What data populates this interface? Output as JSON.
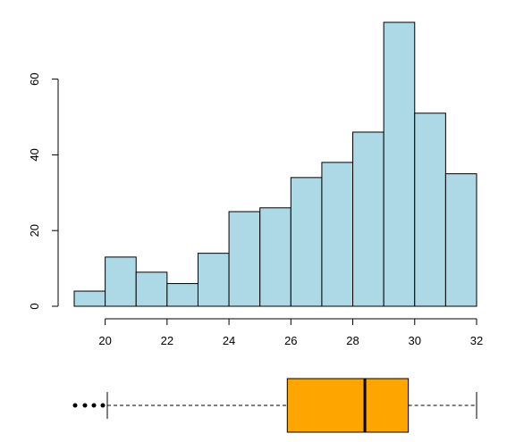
{
  "chart_data": [
    {
      "type": "bar",
      "subtype": "histogram",
      "bin_edges": [
        19,
        20,
        21,
        22,
        23,
        24,
        25,
        26,
        27,
        28,
        29,
        30,
        31,
        32
      ],
      "values": [
        4,
        13,
        9,
        6,
        14,
        25,
        26,
        34,
        38,
        46,
        75,
        51,
        35
      ],
      "x_ticks": [
        20,
        22,
        24,
        26,
        28,
        30,
        32
      ],
      "y_ticks": [
        0,
        20,
        40,
        60
      ],
      "xlim": [
        19,
        32
      ],
      "ylim": [
        0,
        75
      ],
      "grid": false,
      "title": "",
      "xlabel": "",
      "ylabel": "",
      "colors": {
        "fill": "#add8e6",
        "stroke": "#000000"
      }
    },
    {
      "type": "boxplot",
      "orientation": "horizontal",
      "whisker_low": 20.1,
      "q1": 25.9,
      "median": 28.4,
      "q3": 29.8,
      "whisker_high": 32,
      "outliers": [
        19.1,
        19.4,
        19.6,
        19.9
      ],
      "colors": {
        "box": "#ffa500",
        "line": "#000000"
      }
    }
  ]
}
